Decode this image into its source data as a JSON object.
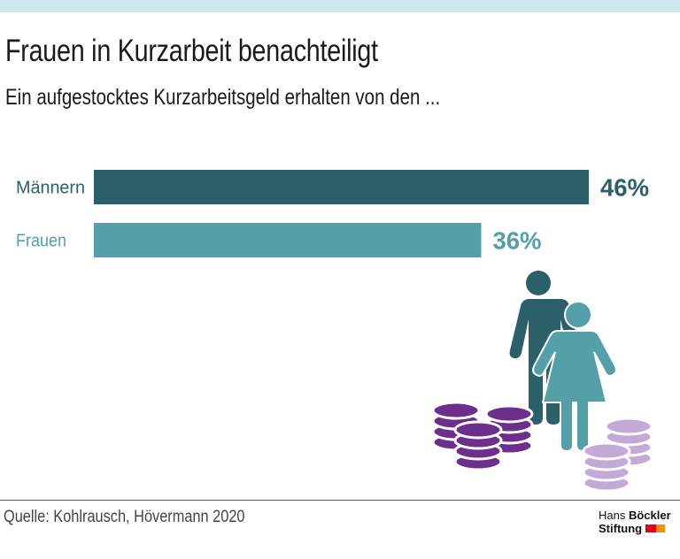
{
  "header": {
    "title": "Frauen in Kurzarbeit benachteiligt",
    "subtitle": "Ein aufgestocktes Kurzarbeitsgeld erhalten von den ..."
  },
  "chart_data": {
    "type": "bar",
    "orientation": "horizontal",
    "title": "Frauen in Kurzarbeit benachteiligt",
    "subtitle": "Ein aufgestocktes Kurzarbeitsgeld erhalten von den ...",
    "categories": [
      "Männern",
      "Frauen"
    ],
    "values": [
      46,
      36
    ],
    "value_labels": [
      "46%",
      "36%"
    ],
    "colors": [
      "#2b5f6a",
      "#559fa8"
    ],
    "xlabel": "",
    "ylabel": "",
    "xlim": [
      0,
      46
    ],
    "unit": "%",
    "grid": false,
    "legend": "none"
  },
  "colors": {
    "men": "#2b5f6a",
    "women": "#559fa8",
    "coins_dark": "#6e2f8c",
    "coins_light": "#c3aad6",
    "topbar": "#cfe6ef",
    "logo_red": "#e3001b",
    "logo_orange": "#f39200"
  },
  "illustration": {
    "icons": [
      "man-figure-icon",
      "woman-figure-icon",
      "coin-stacks-dark-icon",
      "coin-stacks-light-icon"
    ]
  },
  "footer": {
    "source": "Quelle: Kohlrausch, Hövermann 2020",
    "logo_line1_light": "Hans ",
    "logo_line1_bold": "Böckler",
    "logo_line2": "Stiftung"
  }
}
